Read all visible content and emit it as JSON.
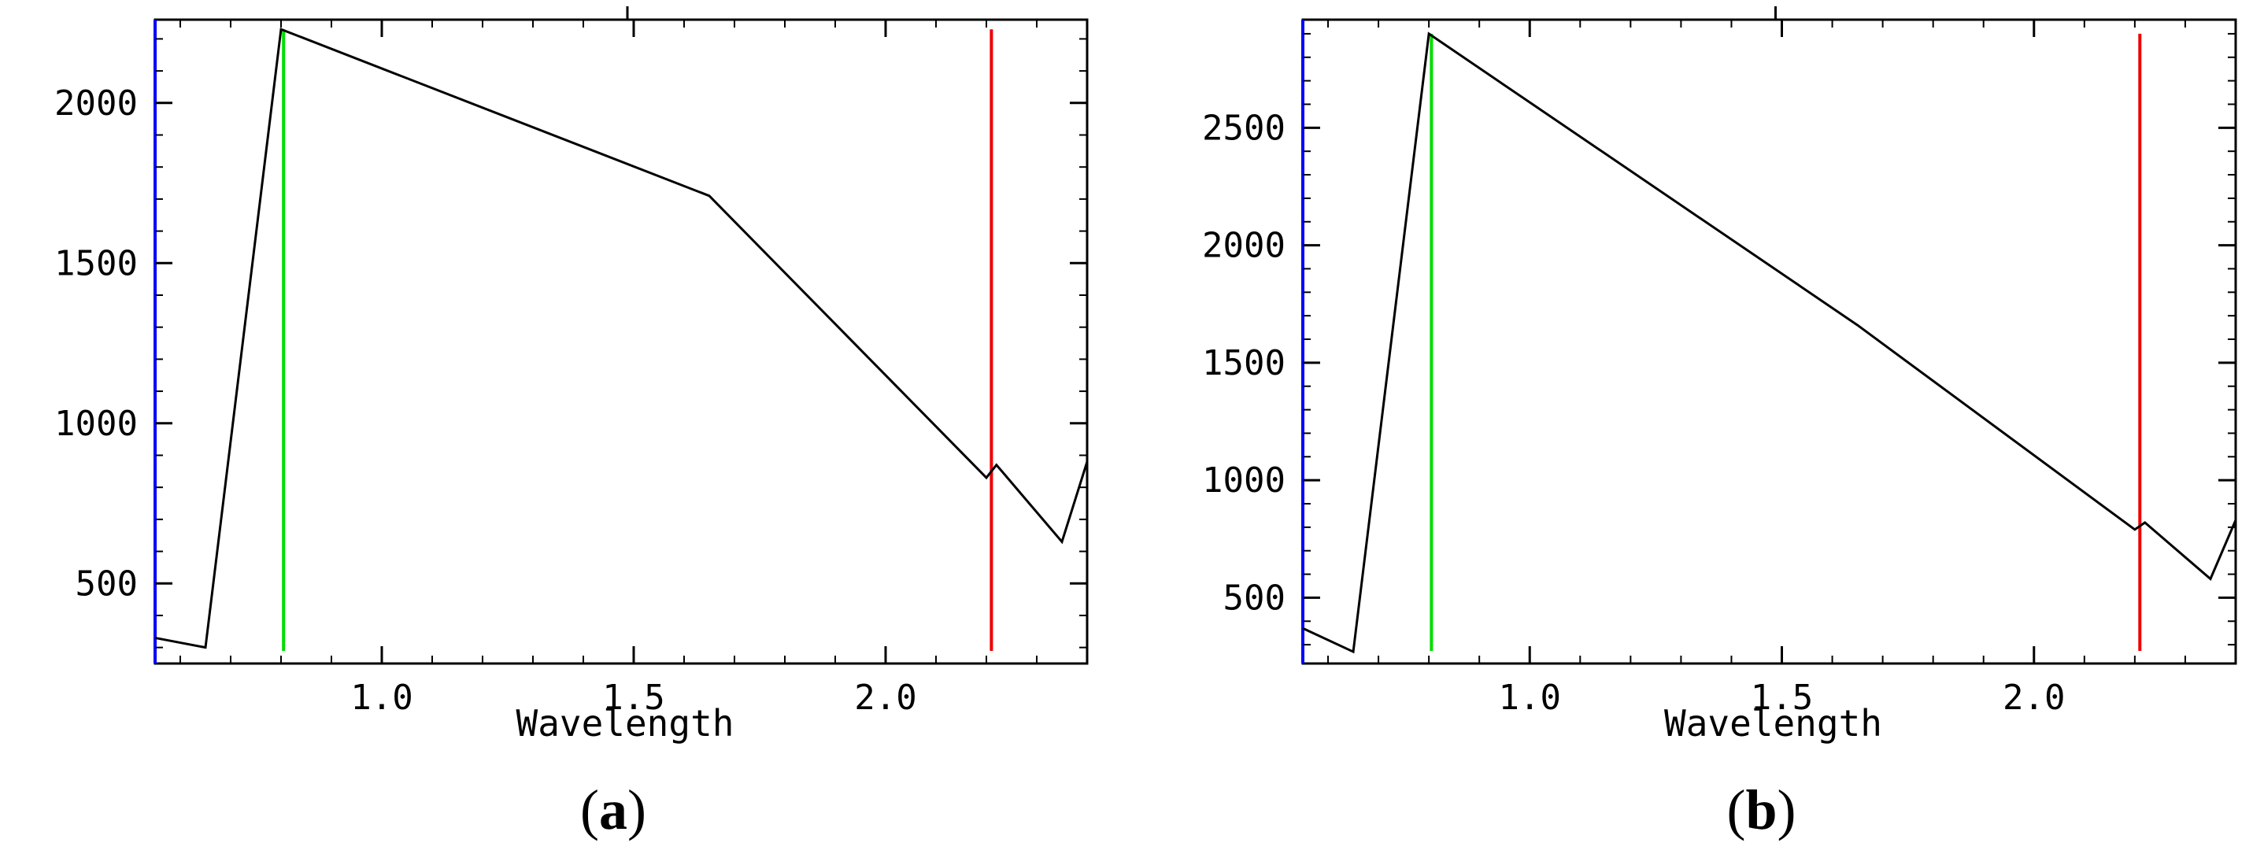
{
  "chart_data": [
    {
      "type": "line",
      "panel_label": "a",
      "xlabel": "Wavelength",
      "ylabel": "",
      "xlim": [
        0.55,
        2.4
      ],
      "ylim": [
        250,
        2260
      ],
      "x_ticks": [
        1.0,
        1.5,
        2.0
      ],
      "x_tick_labels": [
        "1.0",
        "1.5",
        "2.0"
      ],
      "y_ticks": [
        500,
        1000,
        1500,
        2000
      ],
      "y_tick_labels": [
        "500",
        "1000",
        "1500",
        "2000"
      ],
      "series": [
        {
          "color": "#000000",
          "x": [
            0.55,
            0.65,
            0.8,
            1.65,
            2.2,
            2.22,
            2.35,
            2.4
          ],
          "y": [
            330,
            300,
            2230,
            1710,
            830,
            870,
            630,
            880
          ]
        }
      ],
      "vertical_lines": [
        {
          "x": 0.805,
          "color": "#00dd00",
          "y_top": 2230
        },
        {
          "x": 2.21,
          "color": "#ee0000",
          "y_top": 2230
        }
      ],
      "left_axis_color": "#0000ff"
    },
    {
      "type": "line",
      "panel_label": "b",
      "xlabel": "Wavelength",
      "ylabel": "",
      "xlim": [
        0.55,
        2.4
      ],
      "ylim": [
        220,
        2960
      ],
      "x_ticks": [
        1.0,
        1.5,
        2.0
      ],
      "x_tick_labels": [
        "1.0",
        "1.5",
        "2.0"
      ],
      "y_ticks": [
        500,
        1000,
        1500,
        2000,
        2500
      ],
      "y_tick_labels": [
        "500",
        "1000",
        "1500",
        "2000",
        "2500"
      ],
      "series": [
        {
          "color": "#000000",
          "x": [
            0.55,
            0.65,
            0.8,
            1.65,
            2.2,
            2.22,
            2.35,
            2.4
          ],
          "y": [
            370,
            270,
            2900,
            1660,
            790,
            820,
            580,
            830
          ]
        }
      ],
      "vertical_lines": [
        {
          "x": 0.805,
          "color": "#00dd00",
          "y_top": 2900
        },
        {
          "x": 2.21,
          "color": "#ee0000",
          "y_top": 2900
        }
      ],
      "left_axis_color": "#0000ff"
    }
  ]
}
